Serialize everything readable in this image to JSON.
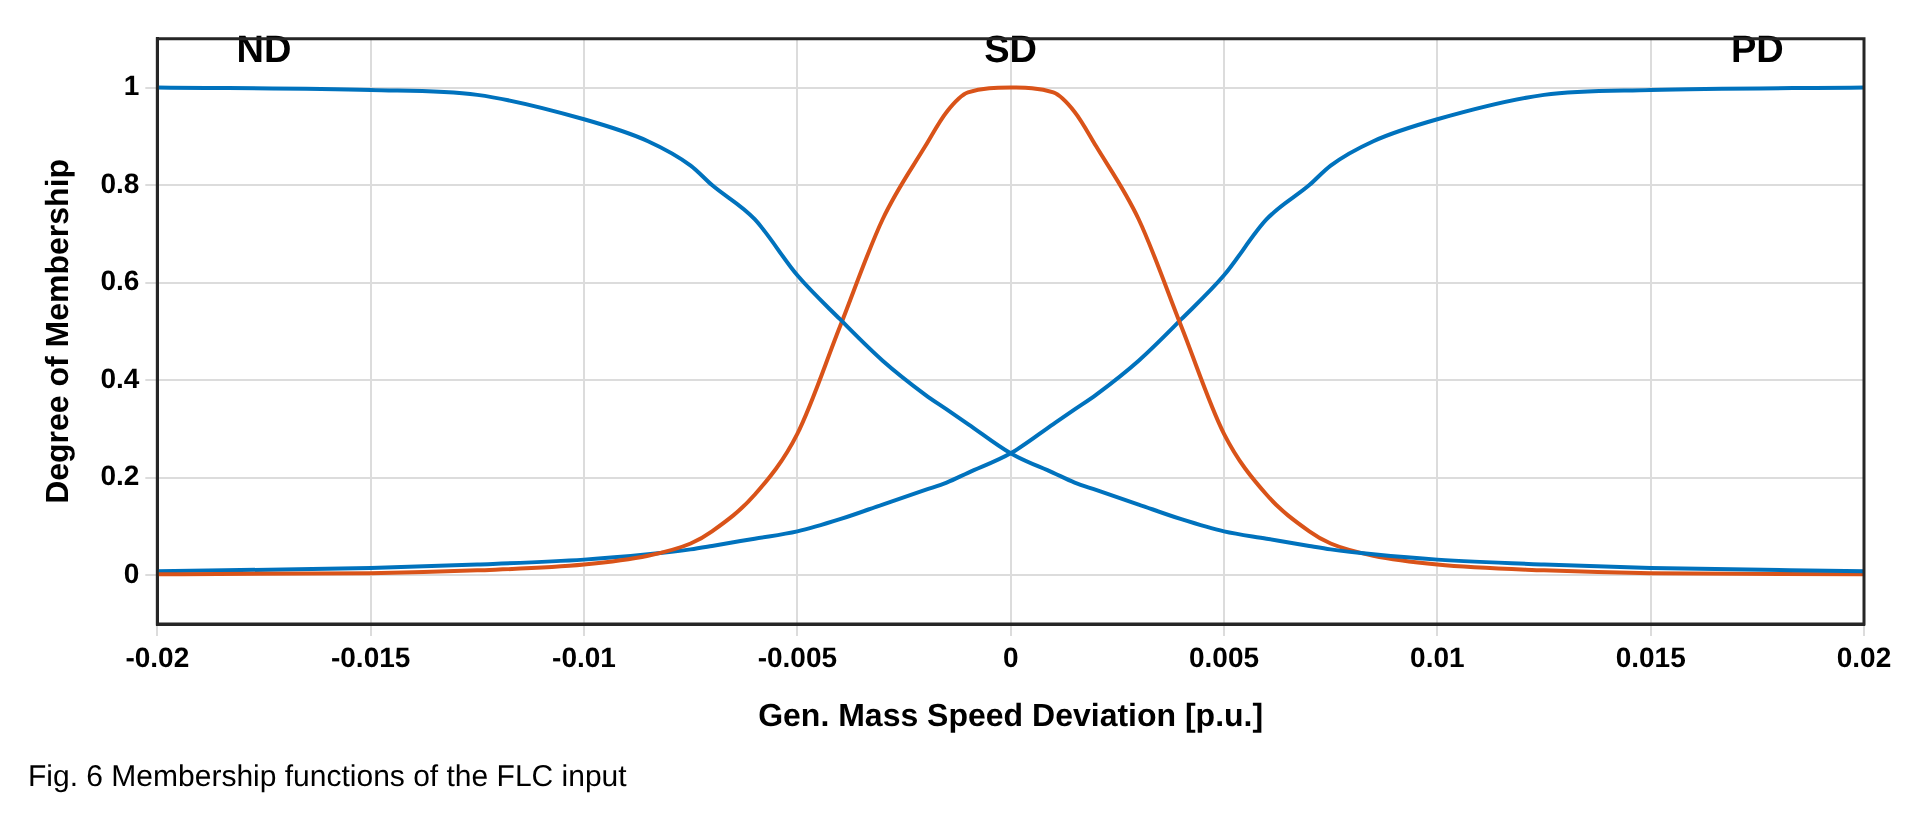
{
  "chart_data": {
    "type": "line",
    "xlabel": "Gen. Mass Speed Deviation [p.u.]",
    "ylabel": "Degree of Membership",
    "x": [
      -0.02,
      -0.015,
      -0.0125,
      -0.01,
      -0.0085,
      -0.0075,
      -0.007,
      -0.006,
      -0.005,
      -0.004,
      -0.003,
      -0.002,
      -0.0015,
      -0.001,
      0,
      0.001,
      0.0015,
      0.002,
      0.003,
      0.004,
      0.005,
      0.006,
      0.007,
      0.0075,
      0.0085,
      0.01,
      0.0125,
      0.015,
      0.02
    ],
    "series": [
      {
        "name": "ND",
        "color": "#0072bd",
        "values": [
          1,
          0.995,
          0.985,
          0.935,
          0.89,
          0.84,
          0.8,
          0.73,
          0.615,
          0.525,
          0.44,
          0.37,
          0.34,
          0.31,
          0.25,
          0.21,
          0.19,
          0.175,
          0.145,
          0.115,
          0.09,
          0.075,
          0.06,
          0.053,
          0.043,
          0.032,
          0.022,
          0.015,
          0.008
        ]
      },
      {
        "name": "SD",
        "color": "#d95319",
        "values": [
          0.002,
          0.004,
          0.01,
          0.022,
          0.04,
          0.065,
          0.09,
          0.165,
          0.29,
          0.51,
          0.73,
          0.88,
          0.95,
          0.99,
          1,
          0.99,
          0.95,
          0.88,
          0.73,
          0.51,
          0.29,
          0.165,
          0.09,
          0.065,
          0.04,
          0.022,
          0.01,
          0.004,
          0.002
        ]
      },
      {
        "name": "PD",
        "color": "#0072bd",
        "values": [
          0.008,
          0.015,
          0.022,
          0.032,
          0.043,
          0.053,
          0.06,
          0.075,
          0.09,
          0.115,
          0.145,
          0.175,
          0.19,
          0.21,
          0.25,
          0.31,
          0.34,
          0.37,
          0.44,
          0.525,
          0.615,
          0.73,
          0.8,
          0.84,
          0.89,
          0.935,
          0.985,
          0.995,
          1
        ]
      }
    ],
    "xlim": [
      -0.02,
      0.02
    ],
    "xticks": [
      -0.02,
      -0.015,
      -0.01,
      -0.005,
      0,
      0.005,
      0.01,
      0.015,
      0.02
    ],
    "ylim": [
      -0.1,
      1.1
    ],
    "yticks": [
      0,
      0.2,
      0.4,
      0.6,
      0.8,
      1
    ],
    "grid": true,
    "legend": false,
    "marker": "none",
    "line_style": "solid",
    "annotations": [
      "Fig. 6  Membership functions of the FLC input"
    ]
  }
}
